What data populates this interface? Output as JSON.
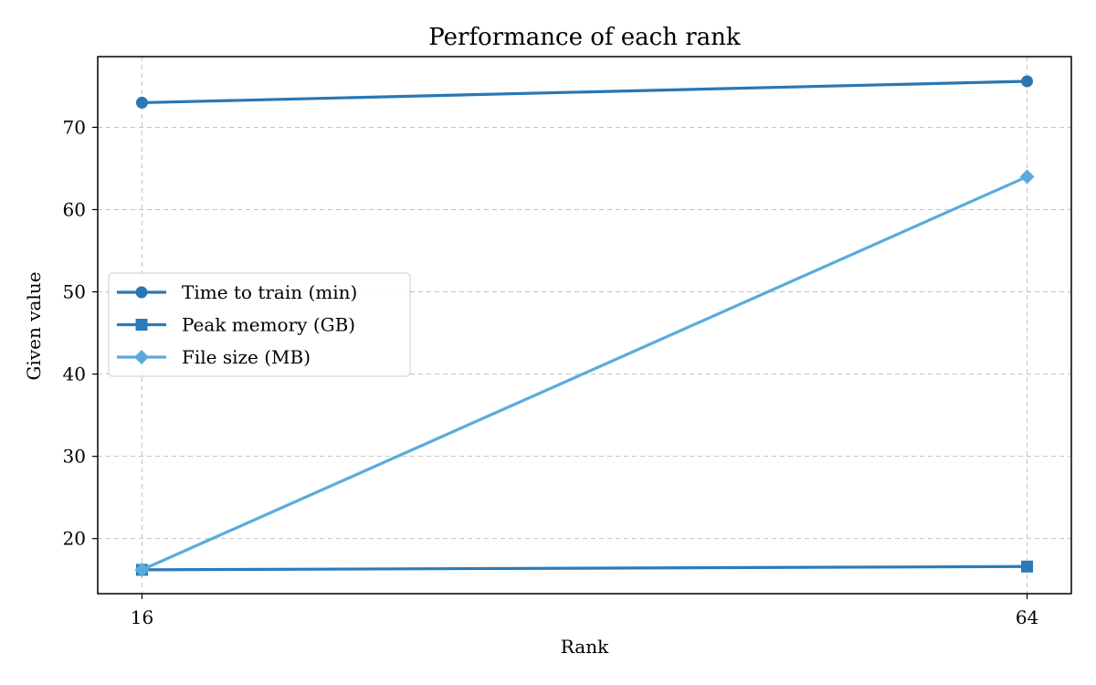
{
  "chart_data": {
    "type": "line",
    "title": "Performance of each rank",
    "xlabel": "Rank",
    "ylabel": "Given value",
    "x": [
      16,
      64
    ],
    "x_tick_labels": [
      "16",
      "64"
    ],
    "y_ticks": [
      20,
      30,
      40,
      50,
      60,
      70
    ],
    "y_tick_labels": [
      "20",
      "30",
      "40",
      "50",
      "60",
      "70"
    ],
    "xlim": [
      13.6,
      66.4
    ],
    "ylim": [
      13.3,
      78.6
    ],
    "grid": true,
    "legend_position": "center-left",
    "series": [
      {
        "name": "Time to train (min)",
        "values": [
          73.0,
          75.6
        ],
        "color": "#2a77b4",
        "marker": "circle"
      },
      {
        "name": "Peak memory (GB)",
        "values": [
          16.2,
          16.6
        ],
        "color": "#2b7bba",
        "marker": "square"
      },
      {
        "name": "File size (MB)",
        "values": [
          16.2,
          64.0
        ],
        "color": "#5aabdc",
        "marker": "diamond"
      }
    ]
  }
}
